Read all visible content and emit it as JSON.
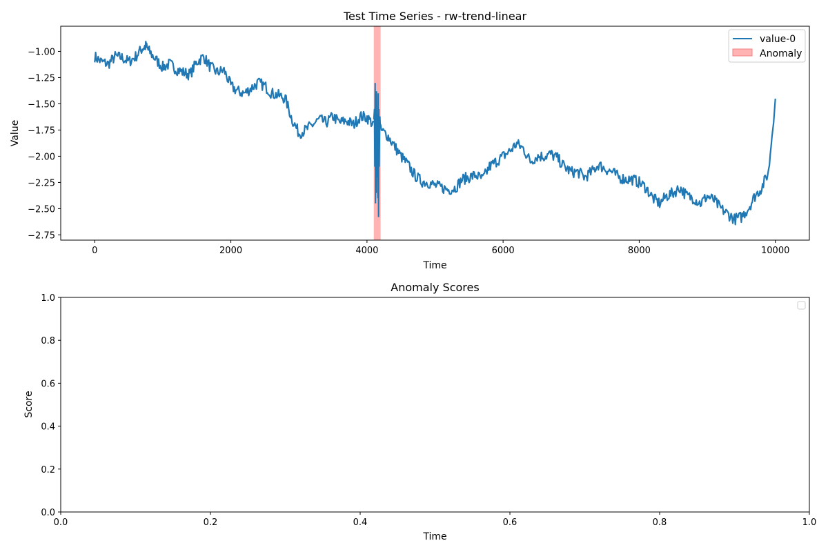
{
  "chart_data": [
    {
      "type": "line",
      "title": "Test Time Series - rw-trend-linear",
      "xlabel": "Time",
      "ylabel": "Value",
      "xlim": [
        -500,
        10500
      ],
      "ylim": [
        -2.8,
        -0.76
      ],
      "xticks": [
        0,
        2000,
        4000,
        6000,
        8000,
        10000
      ],
      "xtick_labels": [
        "0",
        "2000",
        "4000",
        "6000",
        "8000",
        "10000"
      ],
      "yticks": [
        -1.0,
        -1.25,
        -1.5,
        -1.75,
        -2.0,
        -2.25,
        -2.5,
        -2.75
      ],
      "ytick_labels": [
        "−1.00",
        "−1.25",
        "−1.50",
        "−1.75",
        "−2.00",
        "−2.25",
        "−2.50",
        "−2.75"
      ],
      "grid": false,
      "legend_position": "top-right",
      "series": [
        {
          "name": "value-0",
          "color": "#1f77b4",
          "x": [
            0,
            100,
            200,
            300,
            400,
            500,
            600,
            700,
            750,
            800,
            900,
            1000,
            1100,
            1200,
            1300,
            1400,
            1500,
            1600,
            1700,
            1800,
            1900,
            2000,
            2100,
            2200,
            2300,
            2400,
            2500,
            2600,
            2700,
            2800,
            2900,
            3000,
            3100,
            3200,
            3300,
            3400,
            3500,
            3600,
            3700,
            3800,
            3900,
            4000,
            4100,
            4200,
            4300,
            4400,
            4500,
            4600,
            4700,
            4800,
            4900,
            5000,
            5100,
            5200,
            5300,
            5400,
            5500,
            5600,
            5700,
            5800,
            5900,
            6000,
            6100,
            6200,
            6300,
            6400,
            6500,
            6600,
            6700,
            6800,
            6900,
            7000,
            7100,
            7200,
            7300,
            7400,
            7500,
            7600,
            7700,
            7800,
            7900,
            8000,
            8100,
            8200,
            8300,
            8400,
            8500,
            8600,
            8700,
            8800,
            8900,
            9000,
            9100,
            9200,
            9300,
            9400,
            9500,
            9600,
            9700,
            9800,
            9900,
            10000
          ],
          "values": [
            -1.05,
            -1.1,
            -1.12,
            -1.05,
            -1.06,
            -1.1,
            -1.05,
            -0.97,
            -0.95,
            -1.0,
            -1.08,
            -1.15,
            -1.12,
            -1.17,
            -1.2,
            -1.22,
            -1.1,
            -1.05,
            -1.15,
            -1.2,
            -1.18,
            -1.33,
            -1.38,
            -1.4,
            -1.35,
            -1.3,
            -1.33,
            -1.4,
            -1.42,
            -1.45,
            -1.65,
            -1.78,
            -1.75,
            -1.7,
            -1.65,
            -1.68,
            -1.62,
            -1.68,
            -1.66,
            -1.7,
            -1.62,
            -1.63,
            -1.7,
            -1.75,
            -1.8,
            -1.9,
            -2.0,
            -2.08,
            -2.18,
            -2.24,
            -2.25,
            -2.28,
            -2.3,
            -2.32,
            -2.3,
            -2.22,
            -2.2,
            -2.18,
            -2.22,
            -2.1,
            -2.05,
            -2.0,
            -1.95,
            -1.88,
            -1.93,
            -2.05,
            -2.0,
            -2.0,
            -1.98,
            -2.02,
            -2.1,
            -2.15,
            -2.15,
            -2.2,
            -2.15,
            -2.08,
            -2.12,
            -2.15,
            -2.2,
            -2.22,
            -2.22,
            -2.25,
            -2.3,
            -2.4,
            -2.45,
            -2.38,
            -2.35,
            -2.3,
            -2.38,
            -2.4,
            -2.45,
            -2.38,
            -2.42,
            -2.5,
            -2.55,
            -2.6,
            -2.58,
            -2.5,
            -2.38,
            -2.3,
            -2.15,
            -1.45
          ]
        }
      ],
      "anomaly_span": {
        "label": "Anomaly",
        "start": 4100,
        "end": 4200,
        "color": "#ff9999"
      },
      "anomaly_segment": {
        "x": [
          4100,
          4110,
          4115,
          4120,
          4125,
          4130,
          4135,
          4140,
          4145,
          4150,
          4155,
          4160,
          4165,
          4170,
          4175,
          4180,
          4185,
          4190,
          4195,
          4200
        ],
        "values": [
          -1.65,
          -1.55,
          -2.1,
          -1.3,
          -2.45,
          -1.55,
          -2.35,
          -1.38,
          -2.0,
          -2.2,
          -1.6,
          -2.4,
          -1.4,
          -2.58,
          -1.55,
          -2.1,
          -1.8,
          -1.62,
          -1.7,
          -1.72
        ]
      }
    },
    {
      "type": "line",
      "title": "Anomaly Scores",
      "xlabel": "Time",
      "ylabel": "Score",
      "xlim": [
        0,
        1
      ],
      "ylim": [
        0,
        1
      ],
      "xticks": [
        0,
        0.2,
        0.4,
        0.6,
        0.8,
        1.0
      ],
      "xtick_labels": [
        "0.0",
        "0.2",
        "0.4",
        "0.6",
        "0.8",
        "1.0"
      ],
      "yticks": [
        0,
        0.2,
        0.4,
        0.6,
        0.8,
        1.0
      ],
      "ytick_labels": [
        "0.0",
        "0.2",
        "0.4",
        "0.6",
        "0.8",
        "1.0"
      ],
      "grid": false,
      "legend_position": "top-right",
      "series": []
    }
  ]
}
